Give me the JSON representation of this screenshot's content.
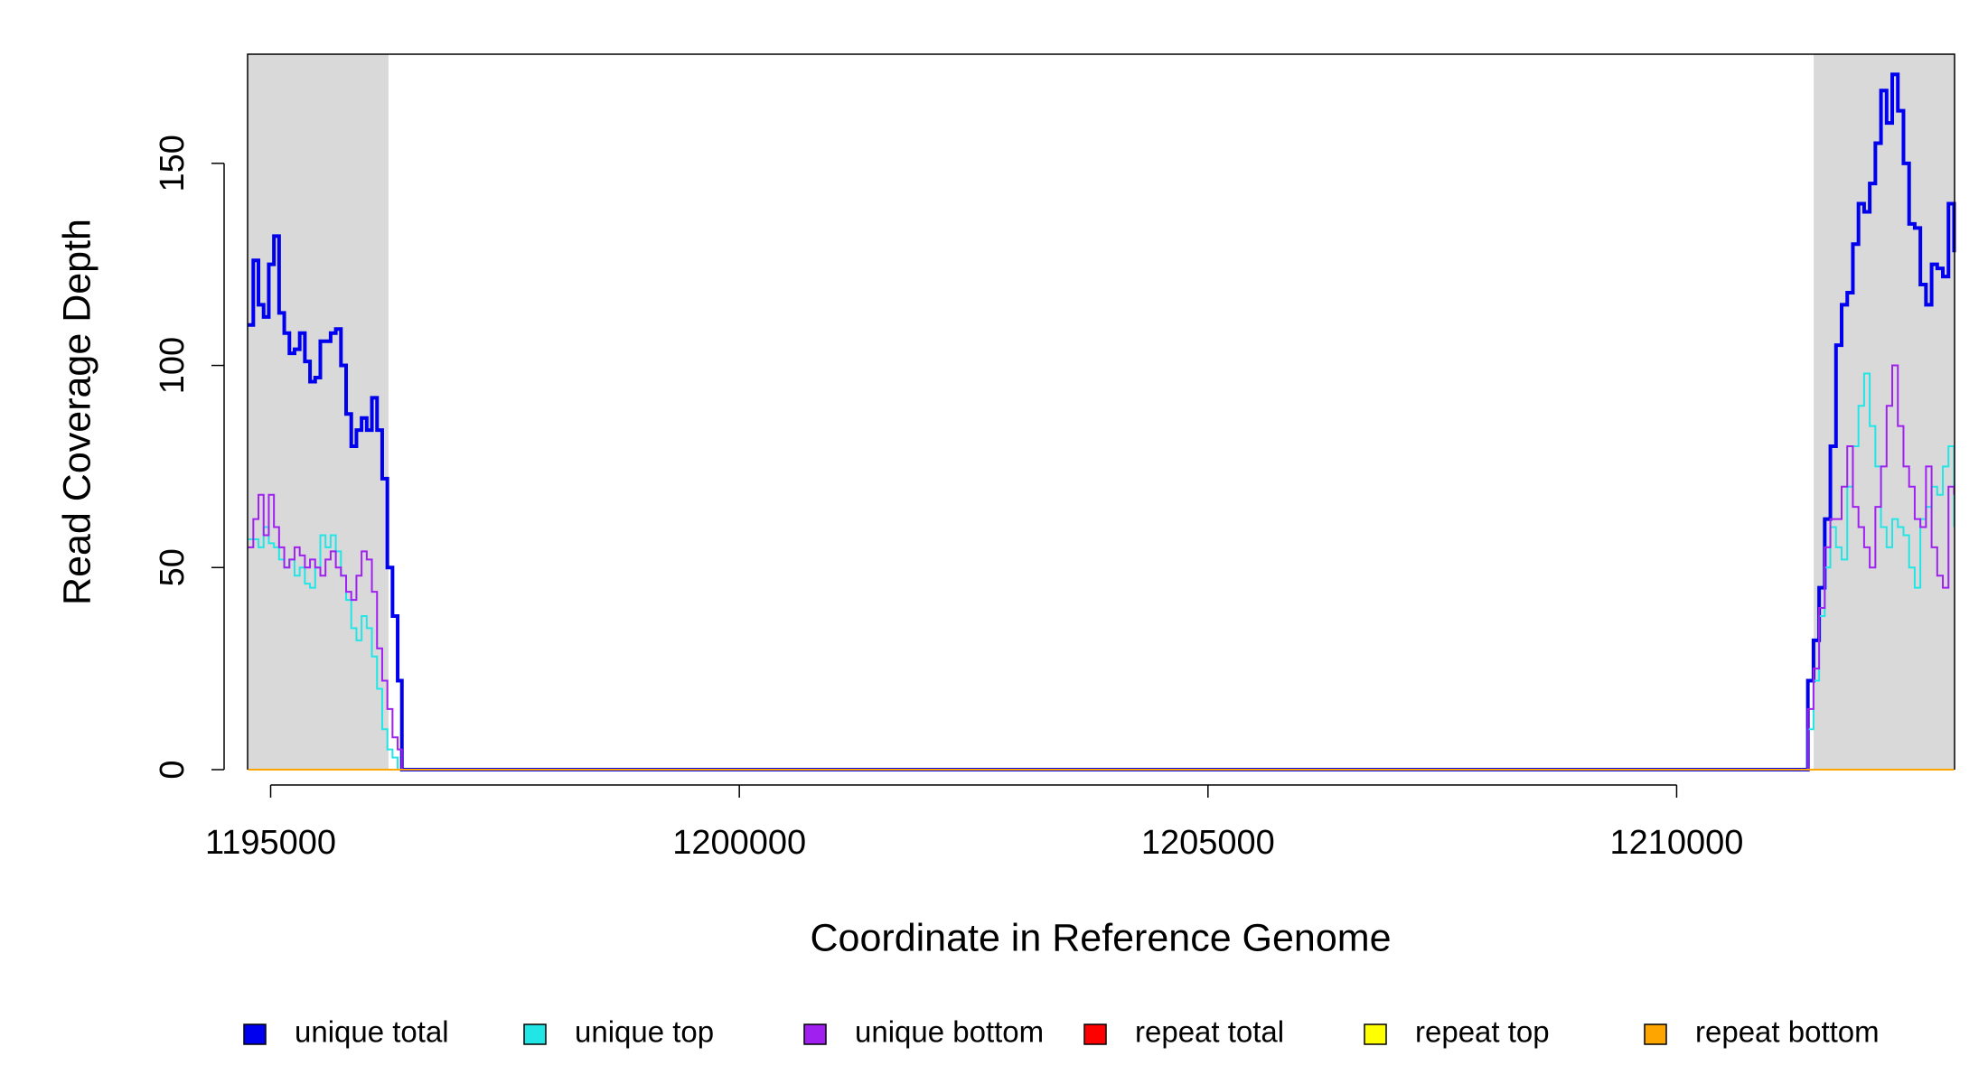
{
  "chart_data": {
    "type": "line",
    "step": true,
    "x_label": "Coordinate in Reference Genome",
    "y_label": "Read Coverage Depth",
    "xlim": [
      1194754,
      1212965
    ],
    "ylim": [
      0,
      177
    ],
    "xticks": [
      1195000,
      1200000,
      1205000,
      1210000
    ],
    "yticks": [
      0,
      50,
      100,
      150
    ],
    "shaded_regions": [
      [
        1194754,
        1196257
      ],
      [
        1211462,
        1212965
      ]
    ],
    "shade_color": "#d9d9d9",
    "x": [
      1194760,
      1194815,
      1194870,
      1194925,
      1194980,
      1195035,
      1195090,
      1195145,
      1195200,
      1195255,
      1195310,
      1195365,
      1195420,
      1195475,
      1195530,
      1195585,
      1195640,
      1195695,
      1195750,
      1195805,
      1195860,
      1195915,
      1195970,
      1196025,
      1196080,
      1196135,
      1196190,
      1196245,
      1196300,
      1196355,
      1196400,
      1211350,
      1211400,
      1211460,
      1211520,
      1211580,
      1211640,
      1211700,
      1211760,
      1211820,
      1211880,
      1211940,
      1212000,
      1212060,
      1212120,
      1212180,
      1212240,
      1212300,
      1212360,
      1212420,
      1212480,
      1212540,
      1212600,
      1212660,
      1212720,
      1212780,
      1212840,
      1212900,
      1212960
    ],
    "series": [
      {
        "name": "unique total",
        "color": "#0000ee",
        "width": 4,
        "values": [
          110,
          126,
          115,
          112,
          125,
          132,
          113,
          108,
          103,
          104,
          108,
          101,
          96,
          97,
          106,
          106,
          108,
          109,
          100,
          88,
          80,
          84,
          87,
          84,
          92,
          84,
          72,
          50,
          38,
          22,
          0,
          0,
          22,
          32,
          45,
          62,
          80,
          105,
          115,
          118,
          130,
          140,
          138,
          145,
          155,
          168,
          160,
          172,
          163,
          150,
          135,
          134,
          120,
          115,
          125,
          124,
          122,
          140,
          128
        ]
      },
      {
        "name": "unique top",
        "color": "#22e6e6",
        "width": 2,
        "values": [
          57,
          57,
          55,
          60,
          56,
          55,
          52,
          50,
          52,
          48,
          50,
          46,
          45,
          50,
          58,
          55,
          58,
          54,
          48,
          42,
          35,
          32,
          38,
          35,
          28,
          20,
          10,
          5,
          3,
          0,
          0,
          0,
          10,
          22,
          38,
          50,
          60,
          55,
          52,
          70,
          80,
          90,
          98,
          85,
          75,
          60,
          55,
          62,
          60,
          58,
          50,
          45,
          62,
          65,
          70,
          68,
          75,
          80,
          60
        ]
      },
      {
        "name": "unique bottom",
        "color": "#a020f0",
        "width": 2,
        "values": [
          55,
          62,
          68,
          58,
          68,
          60,
          55,
          50,
          52,
          55,
          53,
          50,
          52,
          50,
          48,
          52,
          54,
          50,
          48,
          44,
          42,
          48,
          54,
          52,
          44,
          30,
          22,
          15,
          8,
          5,
          0,
          0,
          15,
          25,
          40,
          55,
          62,
          62,
          70,
          80,
          65,
          60,
          55,
          50,
          65,
          75,
          90,
          100,
          85,
          75,
          70,
          62,
          60,
          75,
          55,
          48,
          45,
          70,
          68
        ]
      },
      {
        "name": "repeat total",
        "color": "#ff0000",
        "width": 2,
        "values": [
          0,
          0,
          0,
          0,
          0,
          0,
          0,
          0,
          0,
          0,
          0,
          0,
          0,
          0,
          0,
          0,
          0,
          0,
          0,
          0,
          0,
          0,
          0,
          0,
          0,
          0,
          0,
          0,
          0,
          0,
          0,
          0,
          0,
          0,
          0,
          0,
          0,
          0,
          0,
          0,
          0,
          0,
          0,
          0,
          0,
          0,
          0,
          0,
          0,
          0,
          0,
          0,
          0,
          0,
          0,
          0,
          0,
          0,
          0
        ]
      },
      {
        "name": "repeat top",
        "color": "#ffff00",
        "width": 2,
        "values": [
          0,
          0,
          0,
          0,
          0,
          0,
          0,
          0,
          0,
          0,
          0,
          0,
          0,
          0,
          0,
          0,
          0,
          0,
          0,
          0,
          0,
          0,
          0,
          0,
          0,
          0,
          0,
          0,
          0,
          0,
          0,
          0,
          0,
          0,
          0,
          0,
          0,
          0,
          0,
          0,
          0,
          0,
          0,
          0,
          0,
          0,
          0,
          0,
          0,
          0,
          0,
          0,
          0,
          0,
          0,
          0,
          0,
          0,
          0
        ]
      },
      {
        "name": "repeat bottom",
        "color": "#ffa500",
        "width": 2,
        "values": [
          0,
          0,
          0,
          0,
          0,
          0,
          0,
          0,
          0,
          0,
          0,
          0,
          0,
          0,
          0,
          0,
          0,
          0,
          0,
          0,
          0,
          0,
          0,
          0,
          0,
          0,
          0,
          0,
          0,
          0,
          0,
          0,
          0,
          0,
          0,
          0,
          0,
          0,
          0,
          0,
          0,
          0,
          0,
          0,
          0,
          0,
          0,
          0,
          0,
          0,
          0,
          0,
          0,
          0,
          0,
          0,
          0,
          0,
          0
        ]
      }
    ]
  }
}
